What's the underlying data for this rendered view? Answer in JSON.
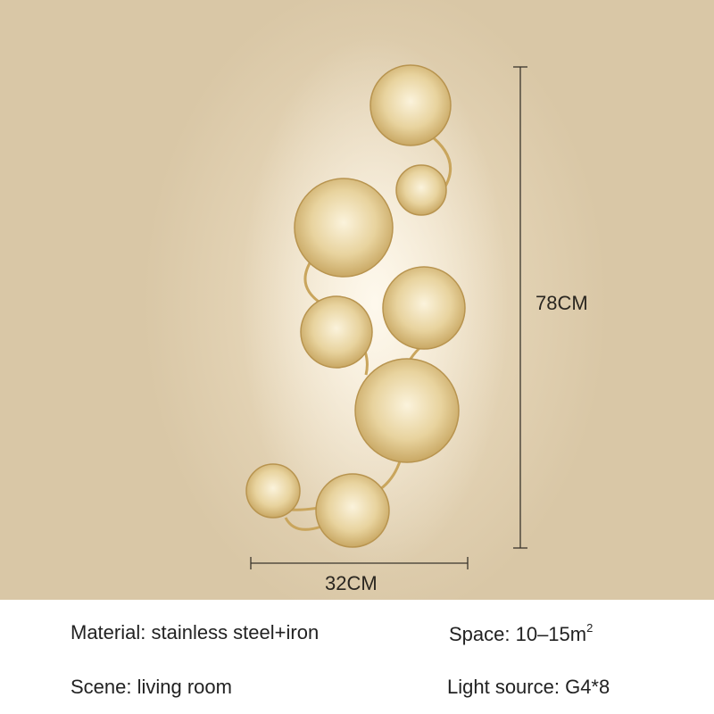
{
  "dimensions": {
    "height_label": "78CM",
    "width_label": "32CM"
  },
  "specs": {
    "material": "Material: stainless steel+iron",
    "space": "Space: 10–15m",
    "space_sup": "2",
    "scene": "Scene: living room",
    "light_source": "Light source: G4*8"
  },
  "colors": {
    "background": "#e6d6b8",
    "gold": "#d9bf82",
    "text": "#222222"
  }
}
